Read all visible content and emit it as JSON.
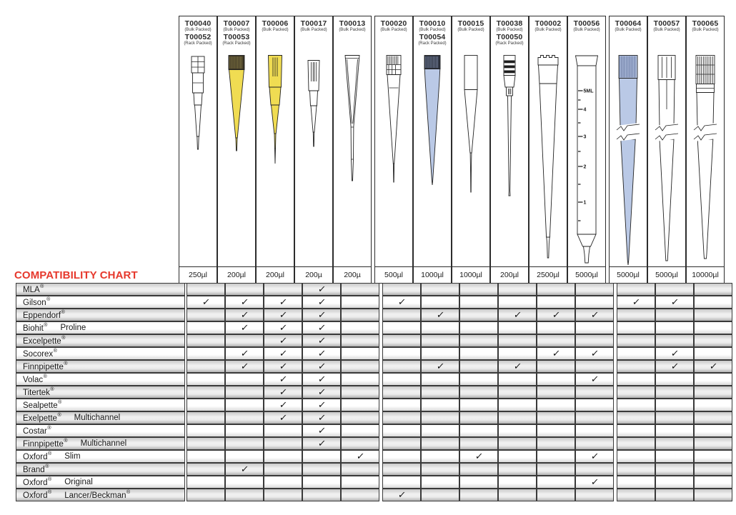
{
  "title": "COMPATIBILITY CHART",
  "check_symbol": "✓",
  "colors": {
    "accent_red": "#e6382c",
    "tip_yellow": "#f0dc52",
    "tip_blue": "#bac9e6",
    "dark_cap_olive": "#3a3322",
    "dark_cap_navy": "#2d3340"
  },
  "columns": [
    {
      "id": "T00040",
      "lines": [
        {
          "code": "T00040",
          "pack": "(Bulk Packed)"
        },
        {
          "code": "T00052",
          "pack": "(Rack Packed)"
        }
      ],
      "volume": "250µl",
      "tip": "t00040"
    },
    {
      "id": "T00007",
      "lines": [
        {
          "code": "T00007",
          "pack": "(Bulk Packed)"
        },
        {
          "code": "T00053",
          "pack": "(Rack Packed)"
        }
      ],
      "volume": "200µl",
      "tip": "t00007"
    },
    {
      "id": "T00006",
      "lines": [
        {
          "code": "T00006",
          "pack": "(Bulk Packed)"
        }
      ],
      "volume": "200µl",
      "tip": "t00006"
    },
    {
      "id": "T00017",
      "lines": [
        {
          "code": "T00017",
          "pack": "(Bulk Packed)"
        }
      ],
      "volume": "200µ",
      "tip": "t00017"
    },
    {
      "id": "T00013",
      "lines": [
        {
          "code": "T00013",
          "pack": "(Bulk Packed)"
        }
      ],
      "volume": "200µ",
      "tip": "t00013"
    },
    {
      "id": "T00020",
      "lines": [
        {
          "code": "T00020",
          "pack": "(Bulk Packed)"
        }
      ],
      "volume": "500µl",
      "tip": "t00020",
      "group_start": true
    },
    {
      "id": "T00010",
      "lines": [
        {
          "code": "T00010",
          "pack": "(Bulk Packed)"
        },
        {
          "code": "T00054",
          "pack": "(Rack Packed)"
        }
      ],
      "volume": "1000µl",
      "tip": "t00010"
    },
    {
      "id": "T00015",
      "lines": [
        {
          "code": "T00015",
          "pack": "(Bulk Packed)"
        }
      ],
      "volume": "1000µl",
      "tip": "t00015"
    },
    {
      "id": "T00038",
      "lines": [
        {
          "code": "T00038",
          "pack": "(Bulk Packed)"
        },
        {
          "code": "T00050",
          "pack": "(Rack Packed)"
        }
      ],
      "volume": "200µl",
      "tip": "t00038"
    },
    {
      "id": "T00002",
      "lines": [
        {
          "code": "T00002",
          "pack": "(Bulk Packed)"
        }
      ],
      "volume": "2500µl",
      "tip": "t00002"
    },
    {
      "id": "T00056",
      "lines": [
        {
          "code": "T00056",
          "pack": "(Bulk Packed)"
        }
      ],
      "volume": "5000µl",
      "tip": "t00056",
      "graduations": [
        "5ML",
        "4",
        "3",
        "2",
        "1"
      ]
    },
    {
      "id": "T00064",
      "lines": [
        {
          "code": "T00064",
          "pack": "(Bulk Packed)"
        }
      ],
      "volume": "5000µl",
      "tip": "t00064",
      "group_start": true
    },
    {
      "id": "T00057",
      "lines": [
        {
          "code": "T00057",
          "pack": "(Bulk Packed)"
        }
      ],
      "volume": "5000µl",
      "tip": "t00057"
    },
    {
      "id": "T00065",
      "lines": [
        {
          "code": "T00065",
          "pack": "(Bulk Packed)"
        }
      ],
      "volume": "10000µl",
      "tip": "t00065"
    }
  ],
  "rows": [
    {
      "brand": "MLA®",
      "variant": "",
      "checks": [
        0,
        0,
        0,
        1,
        0,
        0,
        0,
        0,
        0,
        0,
        0,
        0,
        0,
        0
      ]
    },
    {
      "brand": "Gilson®",
      "variant": "",
      "checks": [
        1,
        1,
        1,
        1,
        0,
        1,
        0,
        0,
        0,
        0,
        0,
        1,
        1,
        0
      ]
    },
    {
      "brand": "Eppendorf®",
      "variant": "",
      "checks": [
        0,
        1,
        1,
        1,
        0,
        0,
        1,
        0,
        1,
        1,
        1,
        0,
        0,
        0
      ]
    },
    {
      "brand": "Biohit®",
      "variant": "Proline",
      "checks": [
        0,
        1,
        1,
        1,
        0,
        0,
        0,
        0,
        0,
        0,
        0,
        0,
        0,
        0
      ]
    },
    {
      "brand": "Excelpette®",
      "variant": "",
      "checks": [
        0,
        0,
        1,
        1,
        0,
        0,
        0,
        0,
        0,
        0,
        0,
        0,
        0,
        0
      ]
    },
    {
      "brand": "Socorex®",
      "variant": "",
      "checks": [
        0,
        1,
        1,
        1,
        0,
        0,
        0,
        0,
        0,
        1,
        1,
        0,
        1,
        0
      ]
    },
    {
      "brand": "Finnpipette®",
      "variant": "",
      "checks": [
        0,
        1,
        1,
        1,
        0,
        0,
        1,
        0,
        1,
        0,
        0,
        0,
        1,
        1
      ]
    },
    {
      "brand": "Volac®",
      "variant": "",
      "checks": [
        0,
        0,
        1,
        1,
        0,
        0,
        0,
        0,
        0,
        0,
        1,
        0,
        0,
        0
      ]
    },
    {
      "brand": "Titertek®",
      "variant": "",
      "checks": [
        0,
        0,
        1,
        1,
        0,
        0,
        0,
        0,
        0,
        0,
        0,
        0,
        0,
        0
      ]
    },
    {
      "brand": "Sealpette®",
      "variant": "",
      "checks": [
        0,
        0,
        1,
        1,
        0,
        0,
        0,
        0,
        0,
        0,
        0,
        0,
        0,
        0
      ]
    },
    {
      "brand": "Exelpette®",
      "variant": "Multichannel",
      "checks": [
        0,
        0,
        1,
        1,
        0,
        0,
        0,
        0,
        0,
        0,
        0,
        0,
        0,
        0
      ]
    },
    {
      "brand": "Costar®",
      "variant": "",
      "checks": [
        0,
        0,
        0,
        1,
        0,
        0,
        0,
        0,
        0,
        0,
        0,
        0,
        0,
        0
      ]
    },
    {
      "brand": "Finnpipette®",
      "variant": "Multichannel",
      "checks": [
        0,
        0,
        0,
        1,
        0,
        0,
        0,
        0,
        0,
        0,
        0,
        0,
        0,
        0
      ]
    },
    {
      "brand": "Oxford®",
      "variant": "Slim",
      "checks": [
        0,
        0,
        0,
        0,
        1,
        0,
        0,
        1,
        0,
        0,
        1,
        0,
        0,
        0
      ]
    },
    {
      "brand": "Brand®",
      "variant": "",
      "checks": [
        0,
        1,
        0,
        0,
        0,
        0,
        0,
        0,
        0,
        0,
        0,
        0,
        0,
        0
      ]
    },
    {
      "brand": "Oxford®",
      "variant": "Original",
      "checks": [
        0,
        0,
        0,
        0,
        0,
        0,
        0,
        0,
        0,
        0,
        1,
        0,
        0,
        0
      ]
    },
    {
      "brand": "Oxford®",
      "variant": "Lancer/Beckman®",
      "checks": [
        0,
        0,
        0,
        0,
        0,
        1,
        0,
        0,
        0,
        0,
        0,
        0,
        0,
        0
      ]
    }
  ]
}
